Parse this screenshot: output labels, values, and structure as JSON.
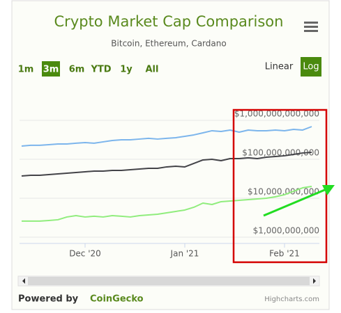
{
  "chart_data": {
    "type": "line",
    "title": "Crypto Market Cap Comparison",
    "subtitle": "Bitcoin, Ethereum, Cardano",
    "log_scale": true,
    "grid": true,
    "categories": [
      null,
      null,
      null,
      null,
      null,
      null,
      null,
      "Dec '20",
      null,
      null,
      null,
      null,
      null,
      null,
      null,
      null,
      null,
      null,
      "Jan '21",
      null,
      null,
      null,
      null,
      null,
      null,
      null,
      null,
      null,
      null,
      "Feb '21",
      null,
      null,
      null
    ],
    "series": [
      {
        "color": "#7cb5ec",
        "values": [
          218000000000,
          228000000000,
          228000000000,
          237000000000,
          247000000000,
          247000000000,
          258000000000,
          268000000000,
          258000000000,
          280000000000,
          303000000000,
          316000000000,
          316000000000,
          330000000000,
          344000000000,
          330000000000,
          344000000000,
          358000000000,
          388000000000,
          422000000000,
          477000000000,
          540000000000,
          518000000000,
          562000000000,
          497000000000,
          562000000000,
          540000000000,
          540000000000,
          562000000000,
          540000000000,
          586000000000,
          562000000000,
          690000000000
        ]
      },
      {
        "color": "#434348",
        "values": [
          37300000000,
          38800000000,
          38800000000,
          40500000000,
          42200000000,
          43900000000,
          45800000000,
          47700000000,
          49700000000,
          49700000000,
          51800000000,
          51800000000,
          54000000000,
          56200000000,
          58600000000,
          58600000000,
          63700000000,
          66300000000,
          63700000000,
          78100000000,
          96000000000,
          100000000000,
          92100000000,
          104000000000,
          104000000000,
          109000000000,
          104000000000,
          113000000000,
          118000000000,
          123000000000,
          133000000000,
          145000000000,
          151000000000
        ]
      },
      {
        "color": "#90ed7d",
        "values": [
          2580000000,
          2580000000,
          2580000000,
          2680000000,
          2800000000,
          3300000000,
          3580000000,
          3300000000,
          3440000000,
          3300000000,
          3580000000,
          3440000000,
          3300000000,
          3580000000,
          3730000000,
          3880000000,
          4220000000,
          4580000000,
          4970000000,
          5860000000,
          7500000000,
          6900000000,
          8150000000,
          8490000000,
          8840000000,
          9210000000,
          9600000000,
          10000000000,
          10900000000,
          12300000000,
          15100000000,
          18500000000,
          20100000000
        ]
      }
    ],
    "ylim": [
      690000000,
      3880000000000
    ],
    "yticks": [
      {
        "value": 1000000000,
        "label": "$1,000,000,000"
      },
      {
        "value": 10000000000,
        "label": "$10,000,000,000"
      },
      {
        "value": 100000000000,
        "label": "$100,000,000,000"
      },
      {
        "value": 1000000000000,
        "label": "$1,000,000,000,000"
      }
    ]
  },
  "controls": {
    "ranges": [
      "1m",
      "3m",
      "6m",
      "YTD",
      "1y",
      "All"
    ],
    "selected_range": 1,
    "scales": [
      "Linear",
      "Log"
    ],
    "selected_scale": 1
  },
  "footer": {
    "powered_by": "Powered by",
    "brand": "CoinGecko",
    "credit": "Highcharts.com"
  }
}
